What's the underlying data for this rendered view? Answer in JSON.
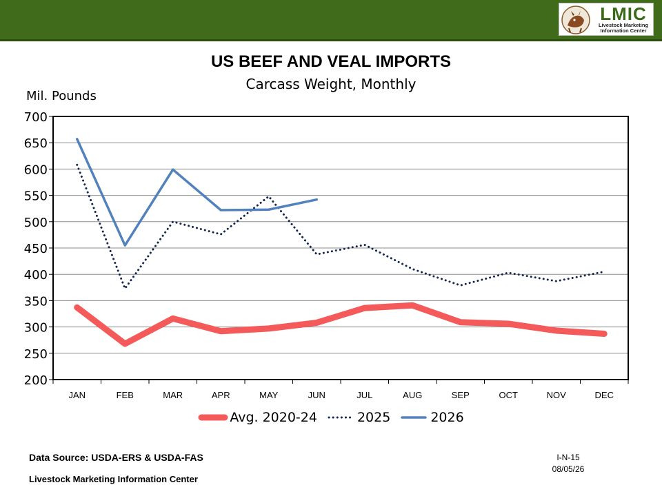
{
  "header": {
    "logo_text": "LMIC",
    "logo_subtitle_line1": "Livestock Marketing",
    "logo_subtitle_line2": "Information Center"
  },
  "chart_data": {
    "type": "line",
    "title": "US BEEF AND VEAL IMPORTS",
    "subtitle": "Carcass Weight, Monthly",
    "ylabel": "Mil. Pounds",
    "xlabel": "",
    "ylim": [
      200,
      700
    ],
    "yticks": [
      200,
      250,
      300,
      350,
      400,
      450,
      500,
      550,
      600,
      650,
      700
    ],
    "grid": true,
    "legend_position": "bottom",
    "categories": [
      "JAN",
      "FEB",
      "MAR",
      "APR",
      "MAY",
      "JUN",
      "JUL",
      "AUG",
      "SEP",
      "OCT",
      "NOV",
      "DEC"
    ],
    "series": [
      {
        "name": "Avg. 2020-24",
        "color": "#f45a5a",
        "style": "thick-solid",
        "values": [
          337,
          268,
          316,
          292,
          297,
          308,
          336,
          341,
          309,
          306,
          293,
          287
        ]
      },
      {
        "name": "2025",
        "color": "#13264f",
        "style": "dotted",
        "values": [
          608,
          373,
          500,
          476,
          548,
          438,
          456,
          410,
          379,
          403,
          387,
          405
        ]
      },
      {
        "name": "2026",
        "color": "#5282bc",
        "style": "solid",
        "values": [
          657,
          455,
          599,
          522,
          523,
          542,
          null,
          null,
          null,
          null,
          null,
          null
        ]
      }
    ]
  },
  "footer": {
    "source": "Data Source:  USDA-ERS & USDA-FAS",
    "org": "Livestock Marketing Information Center",
    "code": "I-N-15",
    "date": "08/05/26"
  }
}
